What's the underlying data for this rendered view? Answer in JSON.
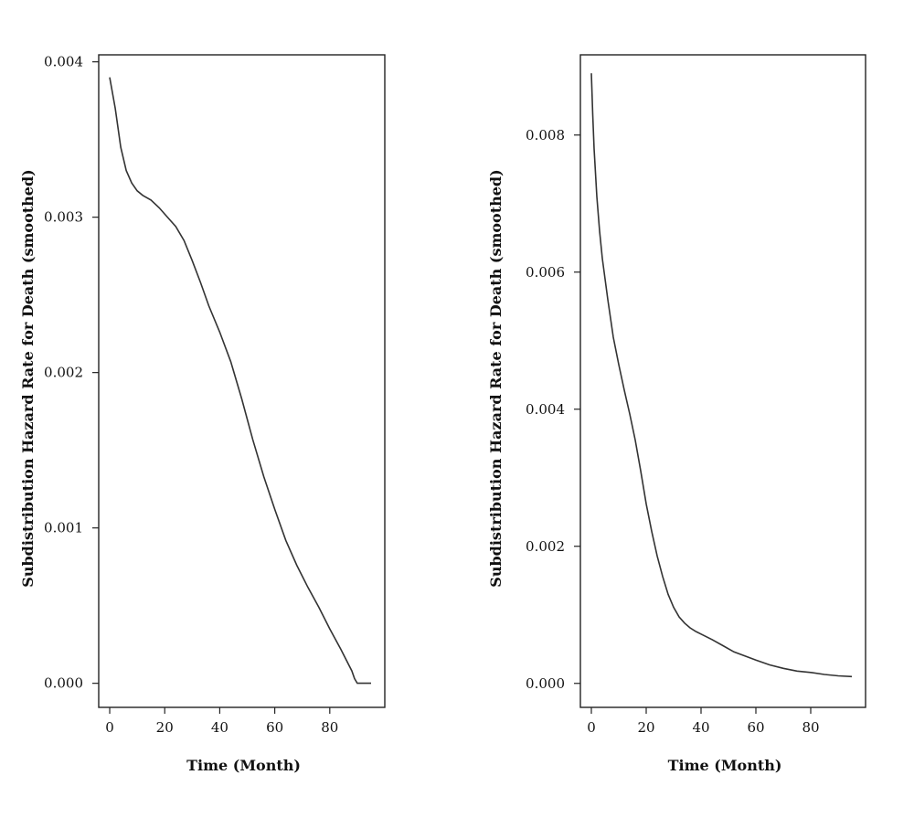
{
  "chart_data": [
    {
      "type": "line",
      "title": "",
      "xlabel": "Time (Month)",
      "ylabel": "Subdistribution Hazard Rate for Death (smoothed)",
      "xlim": [
        -4,
        100
      ],
      "ylim": [
        -0.000155,
        0.004045
      ],
      "xticks": [
        0,
        20,
        40,
        60,
        80
      ],
      "xtick_labels": [
        "0",
        "20",
        "40",
        "60",
        "80"
      ],
      "yticks": [
        0.0,
        0.001,
        0.002,
        0.003,
        0.004
      ],
      "ytick_labels": [
        "0.000",
        "0.001",
        "0.002",
        "0.003",
        "0.004"
      ],
      "grid": false,
      "series": [
        {
          "x": [
            0,
            2,
            4,
            6,
            8,
            10,
            12,
            15,
            18,
            21,
            24,
            27,
            30,
            33,
            36,
            40,
            44,
            48,
            52,
            56,
            60,
            64,
            68,
            72,
            76,
            80,
            84,
            88,
            89,
            90,
            91,
            92,
            95
          ],
          "y": [
            0.0039,
            0.0037,
            0.00345,
            0.0033,
            0.00322,
            0.00317,
            0.00314,
            0.00311,
            0.00306,
            0.003,
            0.00294,
            0.00285,
            0.00272,
            0.00258,
            0.00243,
            0.00226,
            0.00207,
            0.00183,
            0.00157,
            0.00133,
            0.00112,
            0.00092,
            0.00076,
            0.00062,
            0.00049,
            0.00035,
            0.00022,
            8e-05,
            3e-05,
            0.0,
            0.0,
            0.0,
            0.0
          ]
        }
      ]
    },
    {
      "type": "line",
      "title": "",
      "xlabel": "Time (Month)",
      "ylabel": "Subdistribution Hazard Rate for Death (smoothed)",
      "xlim": [
        -4,
        100
      ],
      "ylim": [
        -0.00035,
        0.00917
      ],
      "xticks": [
        0,
        20,
        40,
        60,
        80
      ],
      "xtick_labels": [
        "0",
        "20",
        "40",
        "60",
        "80"
      ],
      "yticks": [
        0.0,
        0.002,
        0.004,
        0.006,
        0.008
      ],
      "ytick_labels": [
        "0.000",
        "0.002",
        "0.004",
        "0.006",
        "0.008"
      ],
      "grid": false,
      "series": [
        {
          "x": [
            0,
            0.5,
            1,
            2,
            3,
            4,
            6,
            8,
            10,
            12,
            14,
            16,
            18,
            20,
            22,
            24,
            26,
            28,
            30,
            32,
            34,
            36,
            38,
            40,
            44,
            48,
            52,
            56,
            60,
            65,
            70,
            75,
            80,
            85,
            90,
            95
          ],
          "y": [
            0.0089,
            0.0083,
            0.0078,
            0.0071,
            0.0066,
            0.0062,
            0.0056,
            0.00505,
            0.00465,
            0.00428,
            0.00393,
            0.00355,
            0.0031,
            0.00262,
            0.00222,
            0.00186,
            0.00156,
            0.0013,
            0.00111,
            0.00097,
            0.00088,
            0.00081,
            0.00076,
            0.00072,
            0.00064,
            0.00055,
            0.00046,
            0.0004,
            0.00034,
            0.00027,
            0.00022,
            0.00018,
            0.00016,
            0.00013,
            0.00011,
            0.0001
          ]
        }
      ]
    }
  ]
}
